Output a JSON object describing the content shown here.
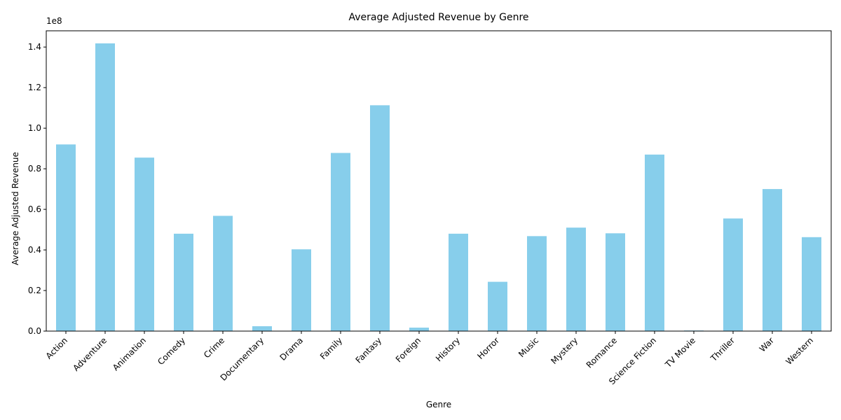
{
  "chart_data": {
    "type": "bar",
    "title": "Average Adjusted Revenue by Genre",
    "xlabel": "Genre",
    "ylabel": "Average Adjusted Revenue",
    "offset_label": "1e8",
    "categories": [
      "Action",
      "Adventure",
      "Animation",
      "Comedy",
      "Crime",
      "Documentary",
      "Drama",
      "Family",
      "Fantasy",
      "Foreign",
      "History",
      "Horror",
      "Music",
      "Mystery",
      "Romance",
      "Science Fiction",
      "TV Movie",
      "Thriller",
      "War",
      "Western"
    ],
    "values": [
      92000000,
      141800000,
      85500000,
      48000000,
      56800000,
      2400000,
      40300000,
      87800000,
      111300000,
      1700000,
      48000000,
      24300000,
      46800000,
      51000000,
      48200000,
      87000000,
      300000,
      55500000,
      70000000,
      46300000
    ],
    "ylim": [
      0,
      148000000
    ],
    "yticks": [
      0,
      20000000,
      40000000,
      60000000,
      80000000,
      100000000,
      120000000,
      140000000
    ],
    "ytick_labels": [
      "0.0",
      "0.2",
      "0.4",
      "0.6",
      "0.8",
      "1.0",
      "1.2",
      "1.4"
    ],
    "bar_color": "#87ceeb",
    "grid": false,
    "legend": "none"
  }
}
